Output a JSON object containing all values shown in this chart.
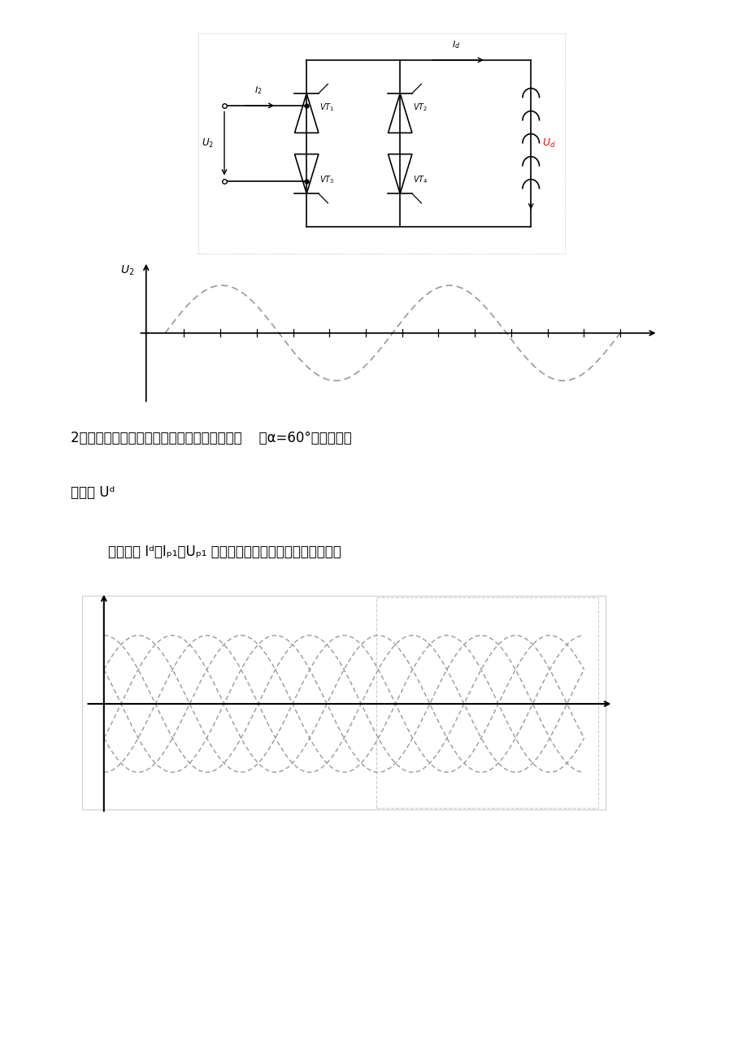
{
  "bg_color": "#ffffff",
  "page_width": 9.2,
  "page_height": 13.03,
  "dashed_color": "#999999",
  "axis_color": "#000000",
  "line_color": "#000000",
  "text1": "2、试画出三相全控桥整流电路（电感性负载）    ，α=60°时，整流输",
  "text2": "出电压 Uᵈ",
  "text3": "    的波形和 Iᵈ、Iₚ₁、Uₚ₁ 各波形（下图波形幅値为线电压）。"
}
